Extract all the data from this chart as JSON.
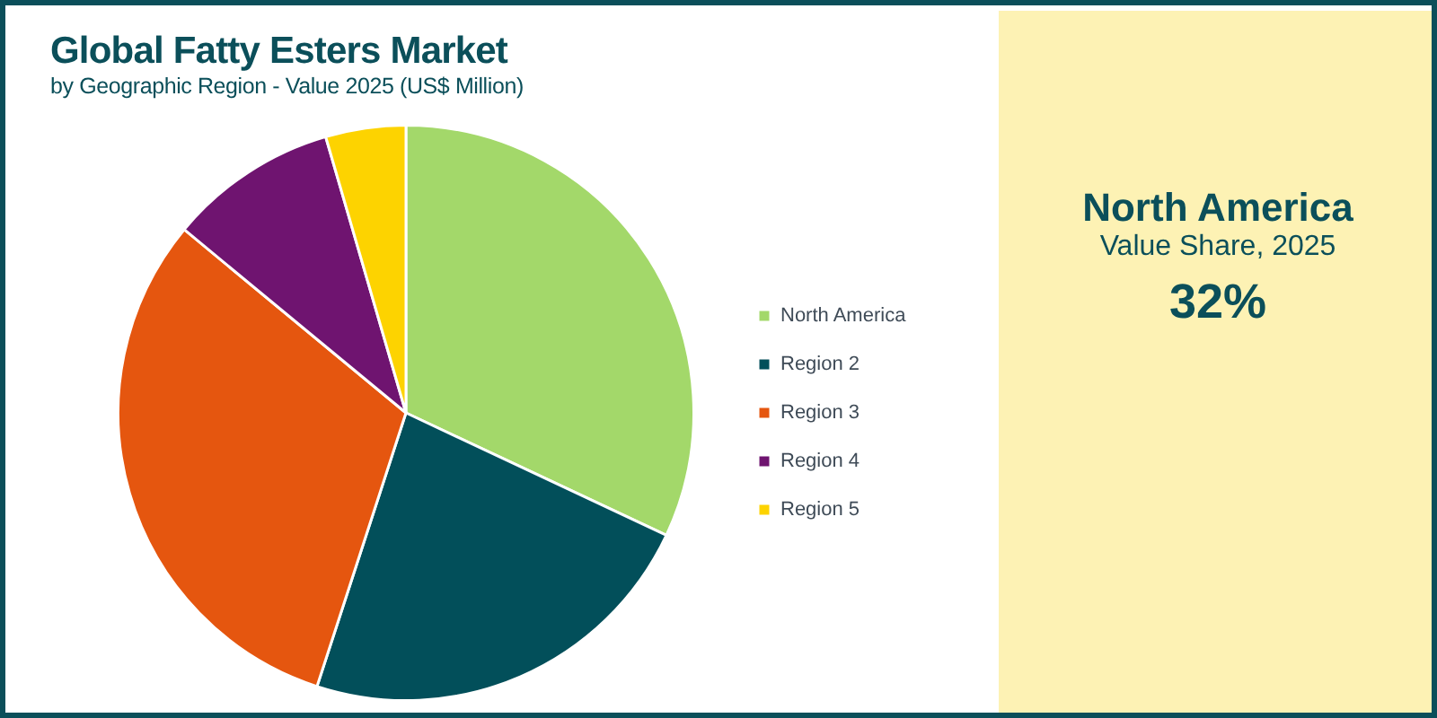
{
  "chart_data": [
    {
      "type": "pie",
      "title": "Global Fatty Esters Market",
      "subtitle": "by Geographic Region - Value 2025 (US$ Million)",
      "categories": [
        "North America",
        "Region 2",
        "Region 3",
        "Region 4",
        "Region 5"
      ],
      "values": [
        32,
        23,
        31,
        9.5,
        4.5
      ],
      "colors": [
        "#a3d86a",
        "#024f5a",
        "#e5560f",
        "#6f1470",
        "#fdd300"
      ],
      "legend": "right"
    },
    {
      "type": "other",
      "title": "North America",
      "subtitle": "Value Share, 2025",
      "annotations": [
        "32%"
      ]
    }
  ]
}
